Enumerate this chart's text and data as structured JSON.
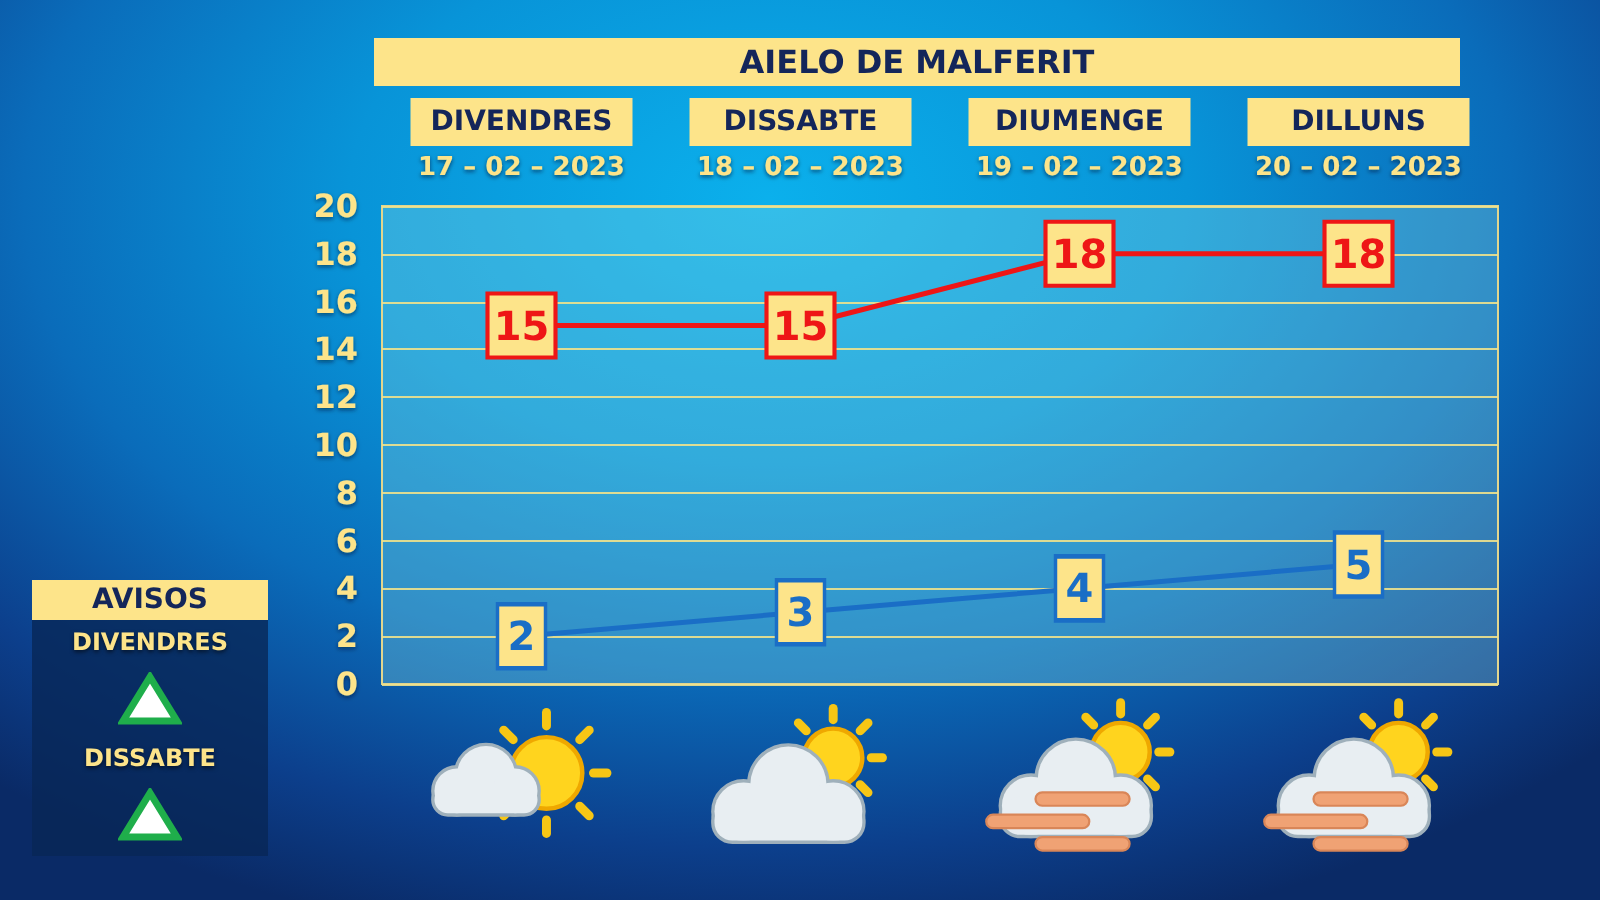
{
  "chart_data": [
    {
      "type": "line",
      "title": "AIELO DE MALFERIT",
      "categories": [
        "DIVENDRES\n17 – 02 – 2023",
        "DISSABTE\n18 – 02 – 2023",
        "DIUMENGE\n19 – 02 – 2023",
        "DILLUNS\n20 – 02 – 2023"
      ],
      "series": [
        {
          "color": "#ee1616",
          "values": [
            15,
            15,
            18,
            18
          ]
        },
        {
          "color": "#1a6ec6",
          "values": [
            2,
            3,
            4,
            5
          ]
        }
      ],
      "ylim": [
        0,
        20
      ],
      "yticks": [
        0,
        2,
        4,
        6,
        8,
        10,
        12,
        14,
        16,
        18,
        20
      ],
      "grid": "y",
      "data_labels": true,
      "marker": "square",
      "line_style": "solid"
    },
    {
      "type": "other",
      "title": "AVISOS",
      "annotations": [
        "DIVENDRES",
        "DISSABTE"
      ]
    }
  ]
}
